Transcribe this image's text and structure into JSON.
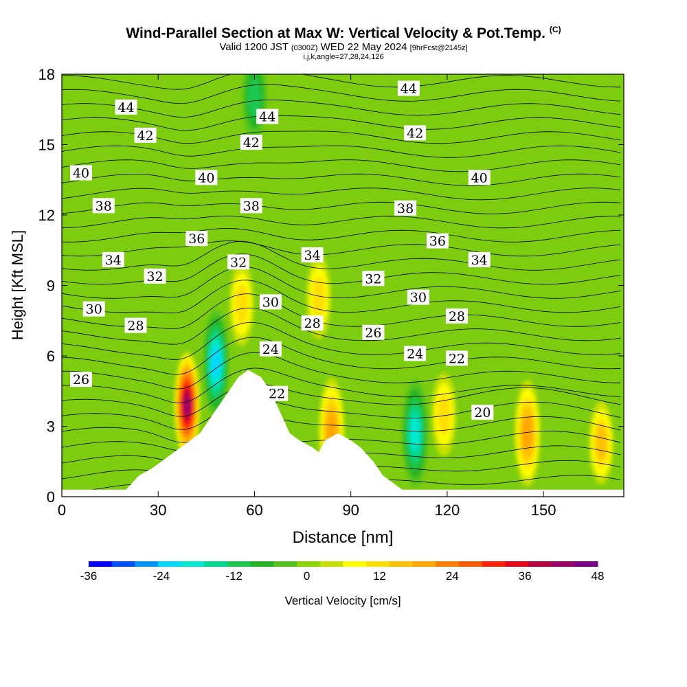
{
  "title": {
    "main": "Wind-Parallel Section at Max W: Vertical Velocity & Pot.Temp.",
    "copyright": "(C)",
    "valid_prefix": "Valid 1200 JST",
    "valid_utc": "(0300Z)",
    "valid_date": "WED 22 May 2024",
    "forecast": "[9hrFcst@2145z]",
    "indices": "i,j,k,angle=27,28,24,126"
  },
  "chart_data": {
    "type": "heatmap",
    "xlabel": "Distance [nm]",
    "ylabel": "Height [Kft MSL]",
    "xlim": [
      0,
      175
    ],
    "ylim": [
      0,
      18
    ],
    "x_ticks": [
      0,
      30,
      60,
      90,
      120,
      150
    ],
    "y_ticks": [
      0,
      3,
      6,
      9,
      12,
      15,
      18
    ],
    "colorbar": {
      "label": "Vertical Velocity [cm/s]",
      "min": -36,
      "max": 48,
      "step": 4,
      "tick_labels": [
        -36,
        -24,
        -12,
        0,
        12,
        24,
        36,
        48
      ],
      "colors": [
        "#0000ff",
        "#0050ff",
        "#0095ff",
        "#00d8ff",
        "#00e8d0",
        "#00d890",
        "#1ec850",
        "#24b424",
        "#54c41c",
        "#8cd400",
        "#c8e000",
        "#ffff00",
        "#ffde00",
        "#ffc000",
        "#ffa600",
        "#ff8000",
        "#ff5a00",
        "#ff2000",
        "#e60018",
        "#b80040",
        "#9c0064",
        "#7a0088"
      ]
    },
    "terrain_kft": [
      [
        0,
        0.3
      ],
      [
        20,
        0.3
      ],
      [
        22,
        0.6
      ],
      [
        24,
        0.9
      ],
      [
        28,
        1.2
      ],
      [
        31,
        1.5
      ],
      [
        34,
        1.8
      ],
      [
        37,
        2.1
      ],
      [
        40,
        2.4
      ],
      [
        43,
        2.7
      ],
      [
        46,
        3.3
      ],
      [
        49,
        3.9
      ],
      [
        52,
        4.5
      ],
      [
        55,
        5.1
      ],
      [
        58,
        5.4
      ],
      [
        62,
        5.1
      ],
      [
        65,
        4.5
      ],
      [
        67,
        3.9
      ],
      [
        69,
        3.3
      ],
      [
        71,
        2.7
      ],
      [
        74,
        2.4
      ],
      [
        78,
        2.1
      ],
      [
        80,
        1.9
      ],
      [
        82,
        2.4
      ],
      [
        86,
        2.7
      ],
      [
        90,
        2.4
      ],
      [
        93,
        2.1
      ],
      [
        97,
        1.5
      ],
      [
        100,
        0.9
      ],
      [
        103,
        0.6
      ],
      [
        106,
        0.3
      ],
      [
        175,
        0.3
      ]
    ],
    "w_cells_cm_s": [
      {
        "x": 39,
        "z": 3.9,
        "w": 44
      },
      {
        "x": 48,
        "z": 5.7,
        "w": -24
      },
      {
        "x": 56,
        "z": 8.2,
        "w": 12
      },
      {
        "x": 60,
        "z": 17.0,
        "w": -12
      },
      {
        "x": 80,
        "z": 8.5,
        "w": 12
      },
      {
        "x": 84,
        "z": 2.8,
        "w": 20
      },
      {
        "x": 110,
        "z": 2.7,
        "w": -20
      },
      {
        "x": 119,
        "z": 3.5,
        "w": 14
      },
      {
        "x": 145,
        "z": 2.7,
        "w": 22
      },
      {
        "x": 168,
        "z": 2.3,
        "w": 18
      }
    ],
    "theta_contour_labels_kft": [
      {
        "x": 20,
        "z": 16.6,
        "text": "44"
      },
      {
        "x": 64,
        "z": 16.2,
        "text": "44"
      },
      {
        "x": 108,
        "z": 17.4,
        "text": "44"
      },
      {
        "x": 26,
        "z": 15.4,
        "text": "42"
      },
      {
        "x": 59,
        "z": 15.1,
        "text": "42"
      },
      {
        "x": 110,
        "z": 15.5,
        "text": "42"
      },
      {
        "x": 6,
        "z": 13.8,
        "text": "40"
      },
      {
        "x": 45,
        "z": 13.6,
        "text": "40"
      },
      {
        "x": 130,
        "z": 13.6,
        "text": "40"
      },
      {
        "x": 13,
        "z": 12.4,
        "text": "38"
      },
      {
        "x": 59,
        "z": 12.4,
        "text": "38"
      },
      {
        "x": 107,
        "z": 12.3,
        "text": "38"
      },
      {
        "x": 42,
        "z": 11.0,
        "text": "36"
      },
      {
        "x": 117,
        "z": 10.9,
        "text": "36"
      },
      {
        "x": 16,
        "z": 10.1,
        "text": "34"
      },
      {
        "x": 78,
        "z": 10.3,
        "text": "34"
      },
      {
        "x": 130,
        "z": 10.1,
        "text": "34"
      },
      {
        "x": 29,
        "z": 9.4,
        "text": "32"
      },
      {
        "x": 55,
        "z": 10.0,
        "text": "32"
      },
      {
        "x": 97,
        "z": 9.3,
        "text": "32"
      },
      {
        "x": 10,
        "z": 8.0,
        "text": "30"
      },
      {
        "x": 65,
        "z": 8.3,
        "text": "30"
      },
      {
        "x": 111,
        "z": 8.5,
        "text": "30"
      },
      {
        "x": 23,
        "z": 7.3,
        "text": "28"
      },
      {
        "x": 78,
        "z": 7.4,
        "text": "28"
      },
      {
        "x": 123,
        "z": 7.7,
        "text": "28"
      },
      {
        "x": 97,
        "z": 7.0,
        "text": "26"
      },
      {
        "x": 6,
        "z": 5.0,
        "text": "26"
      },
      {
        "x": 65,
        "z": 6.3,
        "text": "24"
      },
      {
        "x": 110,
        "z": 6.1,
        "text": "24"
      },
      {
        "x": 123,
        "z": 5.9,
        "text": "22"
      },
      {
        "x": 67,
        "z": 4.4,
        "text": "22"
      },
      {
        "x": 131,
        "z": 3.6,
        "text": "20"
      }
    ]
  }
}
